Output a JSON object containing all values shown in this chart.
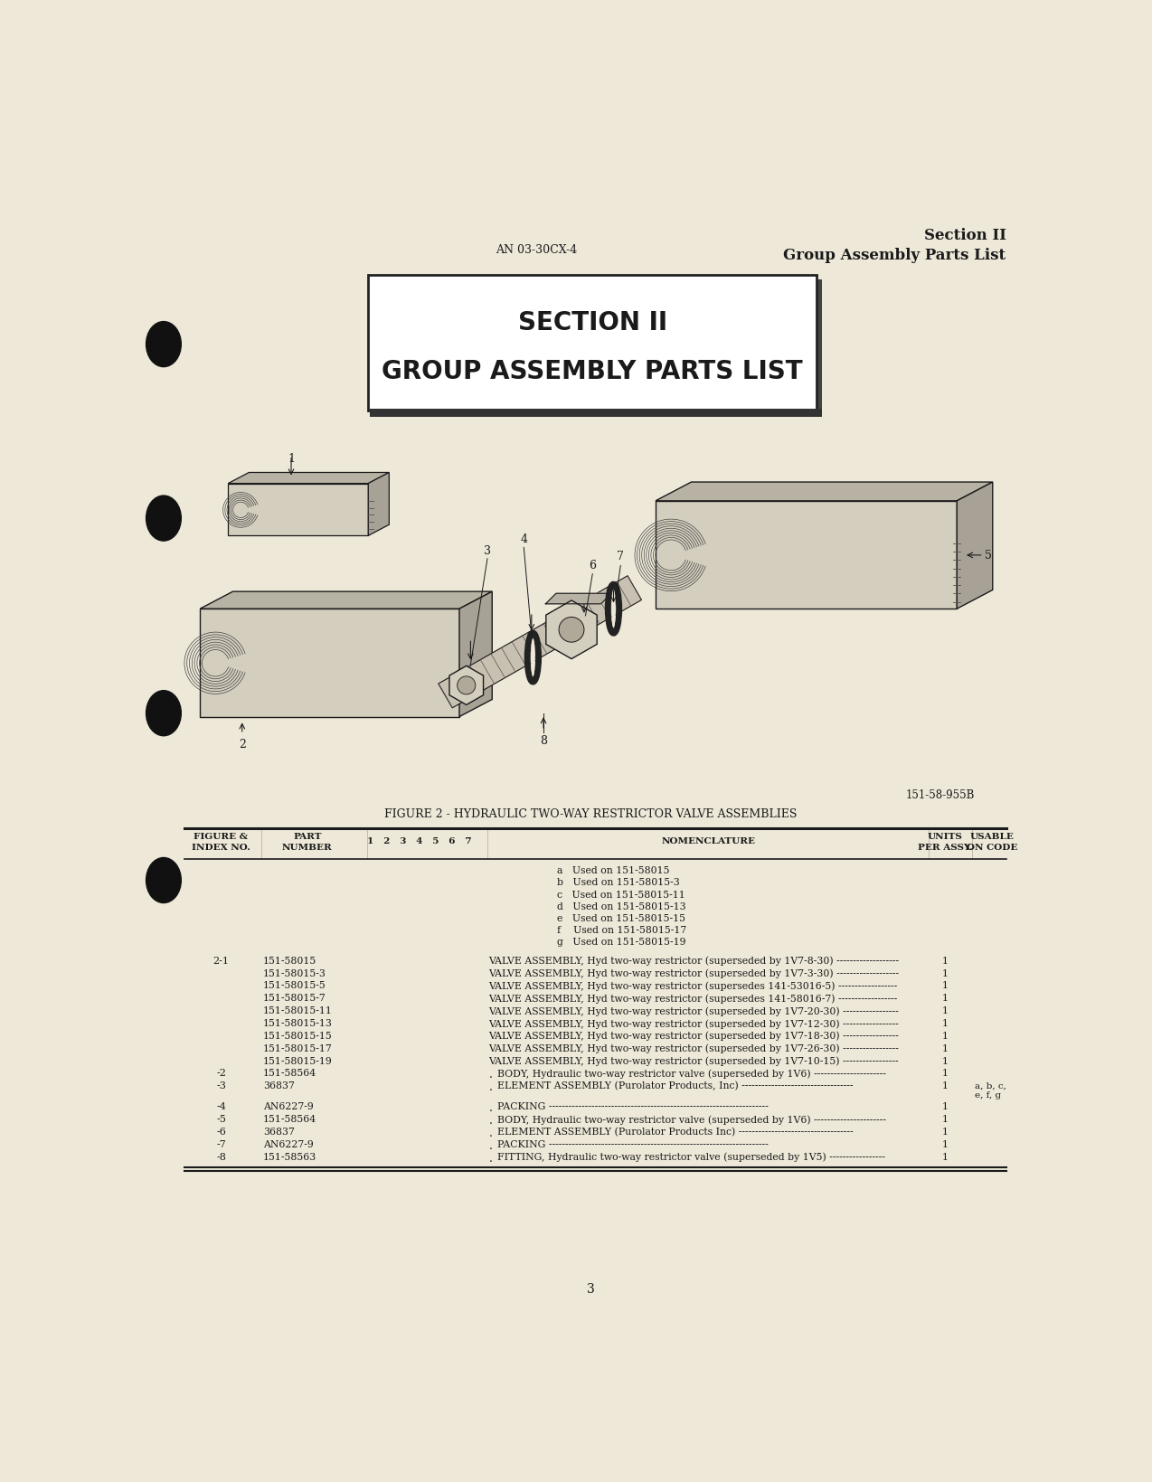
{
  "bg_color": "#ede8d8",
  "text_color": "#1a1a1a",
  "header_doc_num": "AN 03-30CX-4",
  "header_section": "Section II",
  "header_subtitle": "Group Assembly Parts List",
  "title_box_text1": "SECTION II",
  "title_box_text2": "GROUP ASSEMBLY PARTS LIST",
  "figure_caption": "FIGURE 2 - HYDRAULIC TWO-WAY RESTRICTOR VALVE ASSEMBLIES",
  "figure_ref": "151-58-955B",
  "used_on_notes": [
    "a   Used on 151-58015",
    "b   Used on 151-58015-3",
    "c   Used on 151-58015-11",
    "d   Used on 151-58015-13",
    "e   Used on 151-58015-15",
    "f    Used on 151-58015-17",
    "g   Used on 151-58015-19"
  ],
  "parts_data": [
    {
      "fig": "2-1",
      "part": "151-58015",
      "indent": 0,
      "nomenclature": "VALVE ASSEMBLY, Hyd two-way restrictor (superseded by 1V7-8-30) -------------------",
      "units": "1",
      "usable": ""
    },
    {
      "fig": "",
      "part": "151-58015-3",
      "indent": 0,
      "nomenclature": "VALVE ASSEMBLY, Hyd two-way restrictor (superseded by 1V7-3-30) -------------------",
      "units": "1",
      "usable": ""
    },
    {
      "fig": "",
      "part": "151-58015-5",
      "indent": 0,
      "nomenclature": "VALVE ASSEMBLY, Hyd two-way restrictor (supersedes 141-53016-5) ------------------",
      "units": "1",
      "usable": ""
    },
    {
      "fig": "",
      "part": "151-58015-7",
      "indent": 0,
      "nomenclature": "VALVE ASSEMBLY, Hyd two-way restrictor (supersedes 141-58016-7) ------------------",
      "units": "1",
      "usable": ""
    },
    {
      "fig": "",
      "part": "151-58015-11",
      "indent": 0,
      "nomenclature": "VALVE ASSEMBLY, Hyd two-way restrictor (superseded by 1V7-20-30) -----------------",
      "units": "1",
      "usable": ""
    },
    {
      "fig": "",
      "part": "151-58015-13",
      "indent": 0,
      "nomenclature": "VALVE ASSEMBLY, Hyd two-way restrictor (superseded by 1V7-12-30) -----------------",
      "units": "1",
      "usable": ""
    },
    {
      "fig": "",
      "part": "151-58015-15",
      "indent": 0,
      "nomenclature": "VALVE ASSEMBLY, Hyd two-way restrictor (superseded by 1V7-18-30) -----------------",
      "units": "1",
      "usable": ""
    },
    {
      "fig": "",
      "part": "151-58015-17",
      "indent": 0,
      "nomenclature": "VALVE ASSEMBLY, Hyd two-way restrictor (superseded by 1V7-26-30) -----------------",
      "units": "1",
      "usable": ""
    },
    {
      "fig": "",
      "part": "151-58015-19",
      "indent": 0,
      "nomenclature": "VALVE ASSEMBLY, Hyd two-way restrictor (superseded by 1V7-10-15) -----------------",
      "units": "1",
      "usable": ""
    },
    {
      "fig": "-2",
      "part": "151-58564",
      "indent": 1,
      "nomenclature": "BODY, Hydraulic two-way restrictor valve (superseded by 1V6) ----------------------",
      "units": "1",
      "usable": ""
    },
    {
      "fig": "-3",
      "part": "36837",
      "indent": 1,
      "nomenclature": "ELEMENT ASSEMBLY (Purolator Products, Inc) ----------------------------------",
      "units": "1",
      "usable": "a, b, c,\ne, f, g"
    },
    {
      "fig": "-4",
      "part": "AN6227-9",
      "indent": 1,
      "nomenclature": "PACKING -------------------------------------------------------------------",
      "units": "1",
      "usable": ""
    },
    {
      "fig": "-5",
      "part": "151-58564",
      "indent": 1,
      "nomenclature": "BODY, Hydraulic two-way restrictor valve (superseded by 1V6) ----------------------",
      "units": "1",
      "usable": ""
    },
    {
      "fig": "-6",
      "part": "36837",
      "indent": 1,
      "nomenclature": "ELEMENT ASSEMBLY (Purolator Products Inc) -----------------------------------",
      "units": "1",
      "usable": ""
    },
    {
      "fig": "-7",
      "part": "AN6227-9",
      "indent": 1,
      "nomenclature": "PACKING -------------------------------------------------------------------",
      "units": "1",
      "usable": ""
    },
    {
      "fig": "-8",
      "part": "151-58563",
      "indent": 1,
      "nomenclature": "FITTING, Hydraulic two-way restrictor valve (superseded by 1V5) -----------------",
      "units": "1",
      "usable": ""
    }
  ],
  "page_number": "3",
  "face_color": "#d4cebe",
  "top_color": "#b8b2a4",
  "side_color": "#a8a296",
  "dark_color": "#888070",
  "thread_color": "#555050"
}
